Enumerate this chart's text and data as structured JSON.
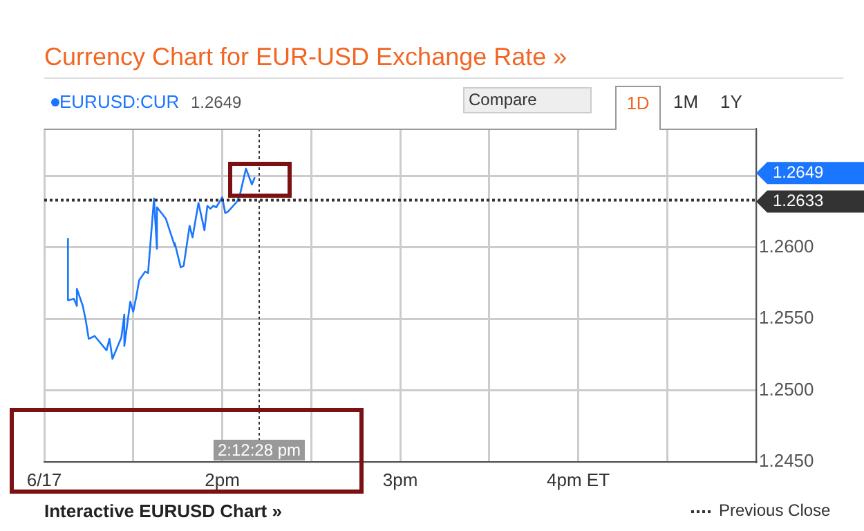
{
  "chart_data": {
    "type": "line",
    "title": "Currency Chart for EUR-USD Exchange Rate »",
    "x": [
      "--06-17T13:08",
      "--06-17T13:08",
      "--06-17T13:10",
      "--06-17T13:11",
      "--06-17T13:11",
      "--06-17T13:13",
      "--06-17T13:14",
      "--06-17T13:15",
      "--06-17T13:17",
      "--06-17T13:21",
      "--06-17T13:22",
      "--06-17T13:23",
      "--06-17T13:26",
      "--06-17T13:27",
      "--06-17T13:27",
      "--06-17T13:29",
      "--06-17T13:30",
      "--06-17T13:31",
      "--06-17T13:32",
      "--06-17T13:34",
      "--06-17T13:35",
      "--06-17T13:37",
      "--06-17T13:38",
      "--06-17T13:38",
      "--06-17T13:41",
      "--06-17T13:44",
      "--06-17T13:44",
      "--06-17T13:46",
      "--06-17T13:47",
      "--06-17T13:49",
      "--06-17T13:50",
      "--06-17T13:52",
      "--06-17T13:54",
      "--06-17T13:55",
      "--06-17T13:56",
      "--06-17T13:57",
      "--06-17T13:58",
      "--06-17T14:00",
      "--06-17T14:01",
      "--06-17T14:02",
      "--06-17T14:05",
      "--06-17T14:06",
      "--06-17T14:08",
      "--06-17T14:10",
      "--06-17T14:11"
    ],
    "series": [
      {
        "name": "EURUSD:CUR",
        "color": "#1a75ff",
        "values": [
          1.2606,
          1.2563,
          1.2564,
          1.2559,
          1.2571,
          1.2559,
          1.2549,
          1.2536,
          1.2538,
          1.2528,
          1.2536,
          1.2522,
          1.2537,
          1.2553,
          1.2531,
          1.2562,
          1.2555,
          1.2565,
          1.2577,
          1.2583,
          1.2582,
          1.2634,
          1.2599,
          1.2628,
          1.262,
          1.2601,
          1.2603,
          1.2586,
          1.2587,
          1.2615,
          1.2607,
          1.2631,
          1.2612,
          1.2629,
          1.2627,
          1.2629,
          1.2628,
          1.2635,
          1.2624,
          1.2625,
          1.2632,
          1.2637,
          1.2655,
          1.2644,
          1.2649
        ]
      }
    ],
    "xlim": [
      "--06-17T13:00",
      "--06-17T17:00"
    ],
    "xticks": [
      {
        "value": "--06-17T13:00",
        "label": "6/17"
      },
      {
        "value": "--06-17T13:30",
        "label": null
      },
      {
        "value": "--06-17T14:00",
        "label": "2pm"
      },
      {
        "value": "--06-17T14:30",
        "label": null
      },
      {
        "value": "--06-17T15:00",
        "label": "3pm"
      },
      {
        "value": "--06-17T15:30",
        "label": null
      },
      {
        "value": "--06-17T16:00",
        "label": "4pm ET"
      },
      {
        "value": "--06-17T16:30",
        "label": null
      },
      {
        "value": "--06-17T17:00",
        "label": null
      }
    ],
    "ylim": [
      1.245,
      1.2683
    ],
    "yticks": [
      {
        "value": 1.245,
        "label": "1.2450"
      },
      {
        "value": 1.25,
        "label": "1.2500"
      },
      {
        "value": 1.255,
        "label": "1.2550"
      },
      {
        "value": 1.26,
        "label": "1.2600"
      },
      {
        "value": 1.265,
        "label": null
      }
    ],
    "ref_lines": [
      {
        "axis": "y",
        "value": 1.2633,
        "color": "#333333",
        "line_style": "dotted"
      },
      {
        "axis": "x",
        "value": "--06-17T14:12:28",
        "label": "2:12:28 pm",
        "color": "#333333",
        "line_style": "dotted"
      }
    ],
    "annotations": [
      "1.2649",
      "Compare",
      "1D",
      "1M",
      "1Y",
      "Interactive EURUSD Chart »",
      "1.2649",
      "1.2633",
      "Previous Close"
    ],
    "grid": true,
    "legend": "top left",
    "marker": "none",
    "line_style": "solid"
  }
}
